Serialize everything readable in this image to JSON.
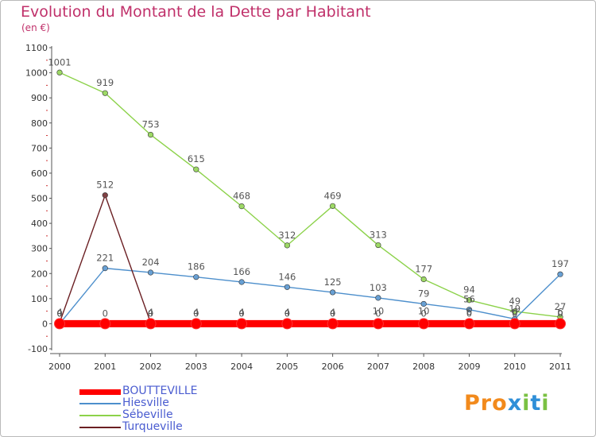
{
  "header": {
    "title": "Evolution du Montant de la Dette par Habitant",
    "unit": "(en €)"
  },
  "chart_data": {
    "type": "line",
    "title": "Evolution du Montant de la Dette par Habitant",
    "ylabel": "(en €)",
    "xlabel": "",
    "x": [
      "2000",
      "2001",
      "2002",
      "2003",
      "2004",
      "2005",
      "2006",
      "2007",
      "2008",
      "2009",
      "2010",
      "2011"
    ],
    "ylim": [
      -100,
      1100
    ],
    "yticks": [
      "-100",
      "0",
      "100",
      "200",
      "300",
      "400",
      "500",
      "600",
      "700",
      "800",
      "900",
      "1000",
      "1100"
    ],
    "grid": false,
    "legend_position": "bottom-left",
    "series": [
      {
        "name": "BOUTTEVILLE",
        "color": "#ff0000",
        "values": [
          0,
          0,
          0,
          0,
          0,
          0,
          0,
          0,
          0,
          0,
          0,
          0
        ]
      },
      {
        "name": "Hiesville",
        "color": "#4d8fcc",
        "values": [
          0,
          221,
          204,
          186,
          166,
          146,
          125,
          103,
          79,
          56,
          19,
          197
        ]
      },
      {
        "name": "Sébeville",
        "color": "#8cd24a",
        "values": [
          1001,
          919,
          753,
          615,
          468,
          312,
          469,
          313,
          177,
          94,
          49,
          27
        ]
      },
      {
        "name": "Turqueville",
        "color": "#6b1f23",
        "values": [
          4,
          512,
          4,
          4,
          4,
          4,
          4,
          10,
          10,
          6,
          6,
          6
        ]
      }
    ]
  },
  "logo": {
    "text": "Proxiti",
    "colors": [
      "#f28a1c",
      "#2f8fd8",
      "#7ac143"
    ]
  }
}
